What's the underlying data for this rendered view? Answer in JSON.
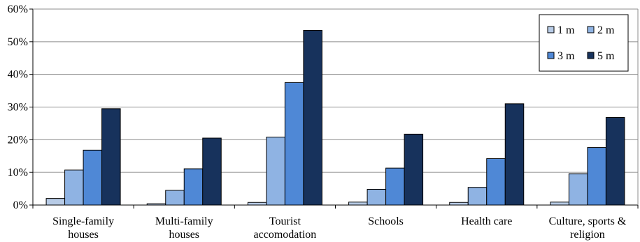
{
  "chart_data": {
    "type": "bar",
    "title": "",
    "xlabel": "",
    "ylabel": "",
    "ylim": [
      0,
      60
    ],
    "y_ticks": [
      "0%",
      "10%",
      "20%",
      "30%",
      "40%",
      "50%",
      "60%"
    ],
    "grid": true,
    "legend_position": "top-right",
    "categories": [
      [
        "Single-family",
        "houses"
      ],
      [
        "Multi-family",
        "houses"
      ],
      [
        "Tourist",
        "accomodation"
      ],
      [
        "Schools"
      ],
      [
        "Health care"
      ],
      [
        "Culture, sports &",
        "religion"
      ]
    ],
    "series": [
      {
        "name": "1 m",
        "color": "#b7cbe6",
        "values": [
          2.0,
          0.4,
          0.8,
          0.9,
          0.8,
          0.9
        ]
      },
      {
        "name": "2 m",
        "color": "#8fb3e3",
        "values": [
          10.7,
          4.5,
          20.8,
          4.8,
          5.4,
          9.6
        ]
      },
      {
        "name": "3 m",
        "color": "#4f88d6",
        "values": [
          16.8,
          11.1,
          37.5,
          11.3,
          14.2,
          17.6
        ]
      },
      {
        "name": "5 m",
        "color": "#17325c",
        "values": [
          29.5,
          20.5,
          53.5,
          21.7,
          31.0,
          26.8
        ]
      }
    ]
  }
}
